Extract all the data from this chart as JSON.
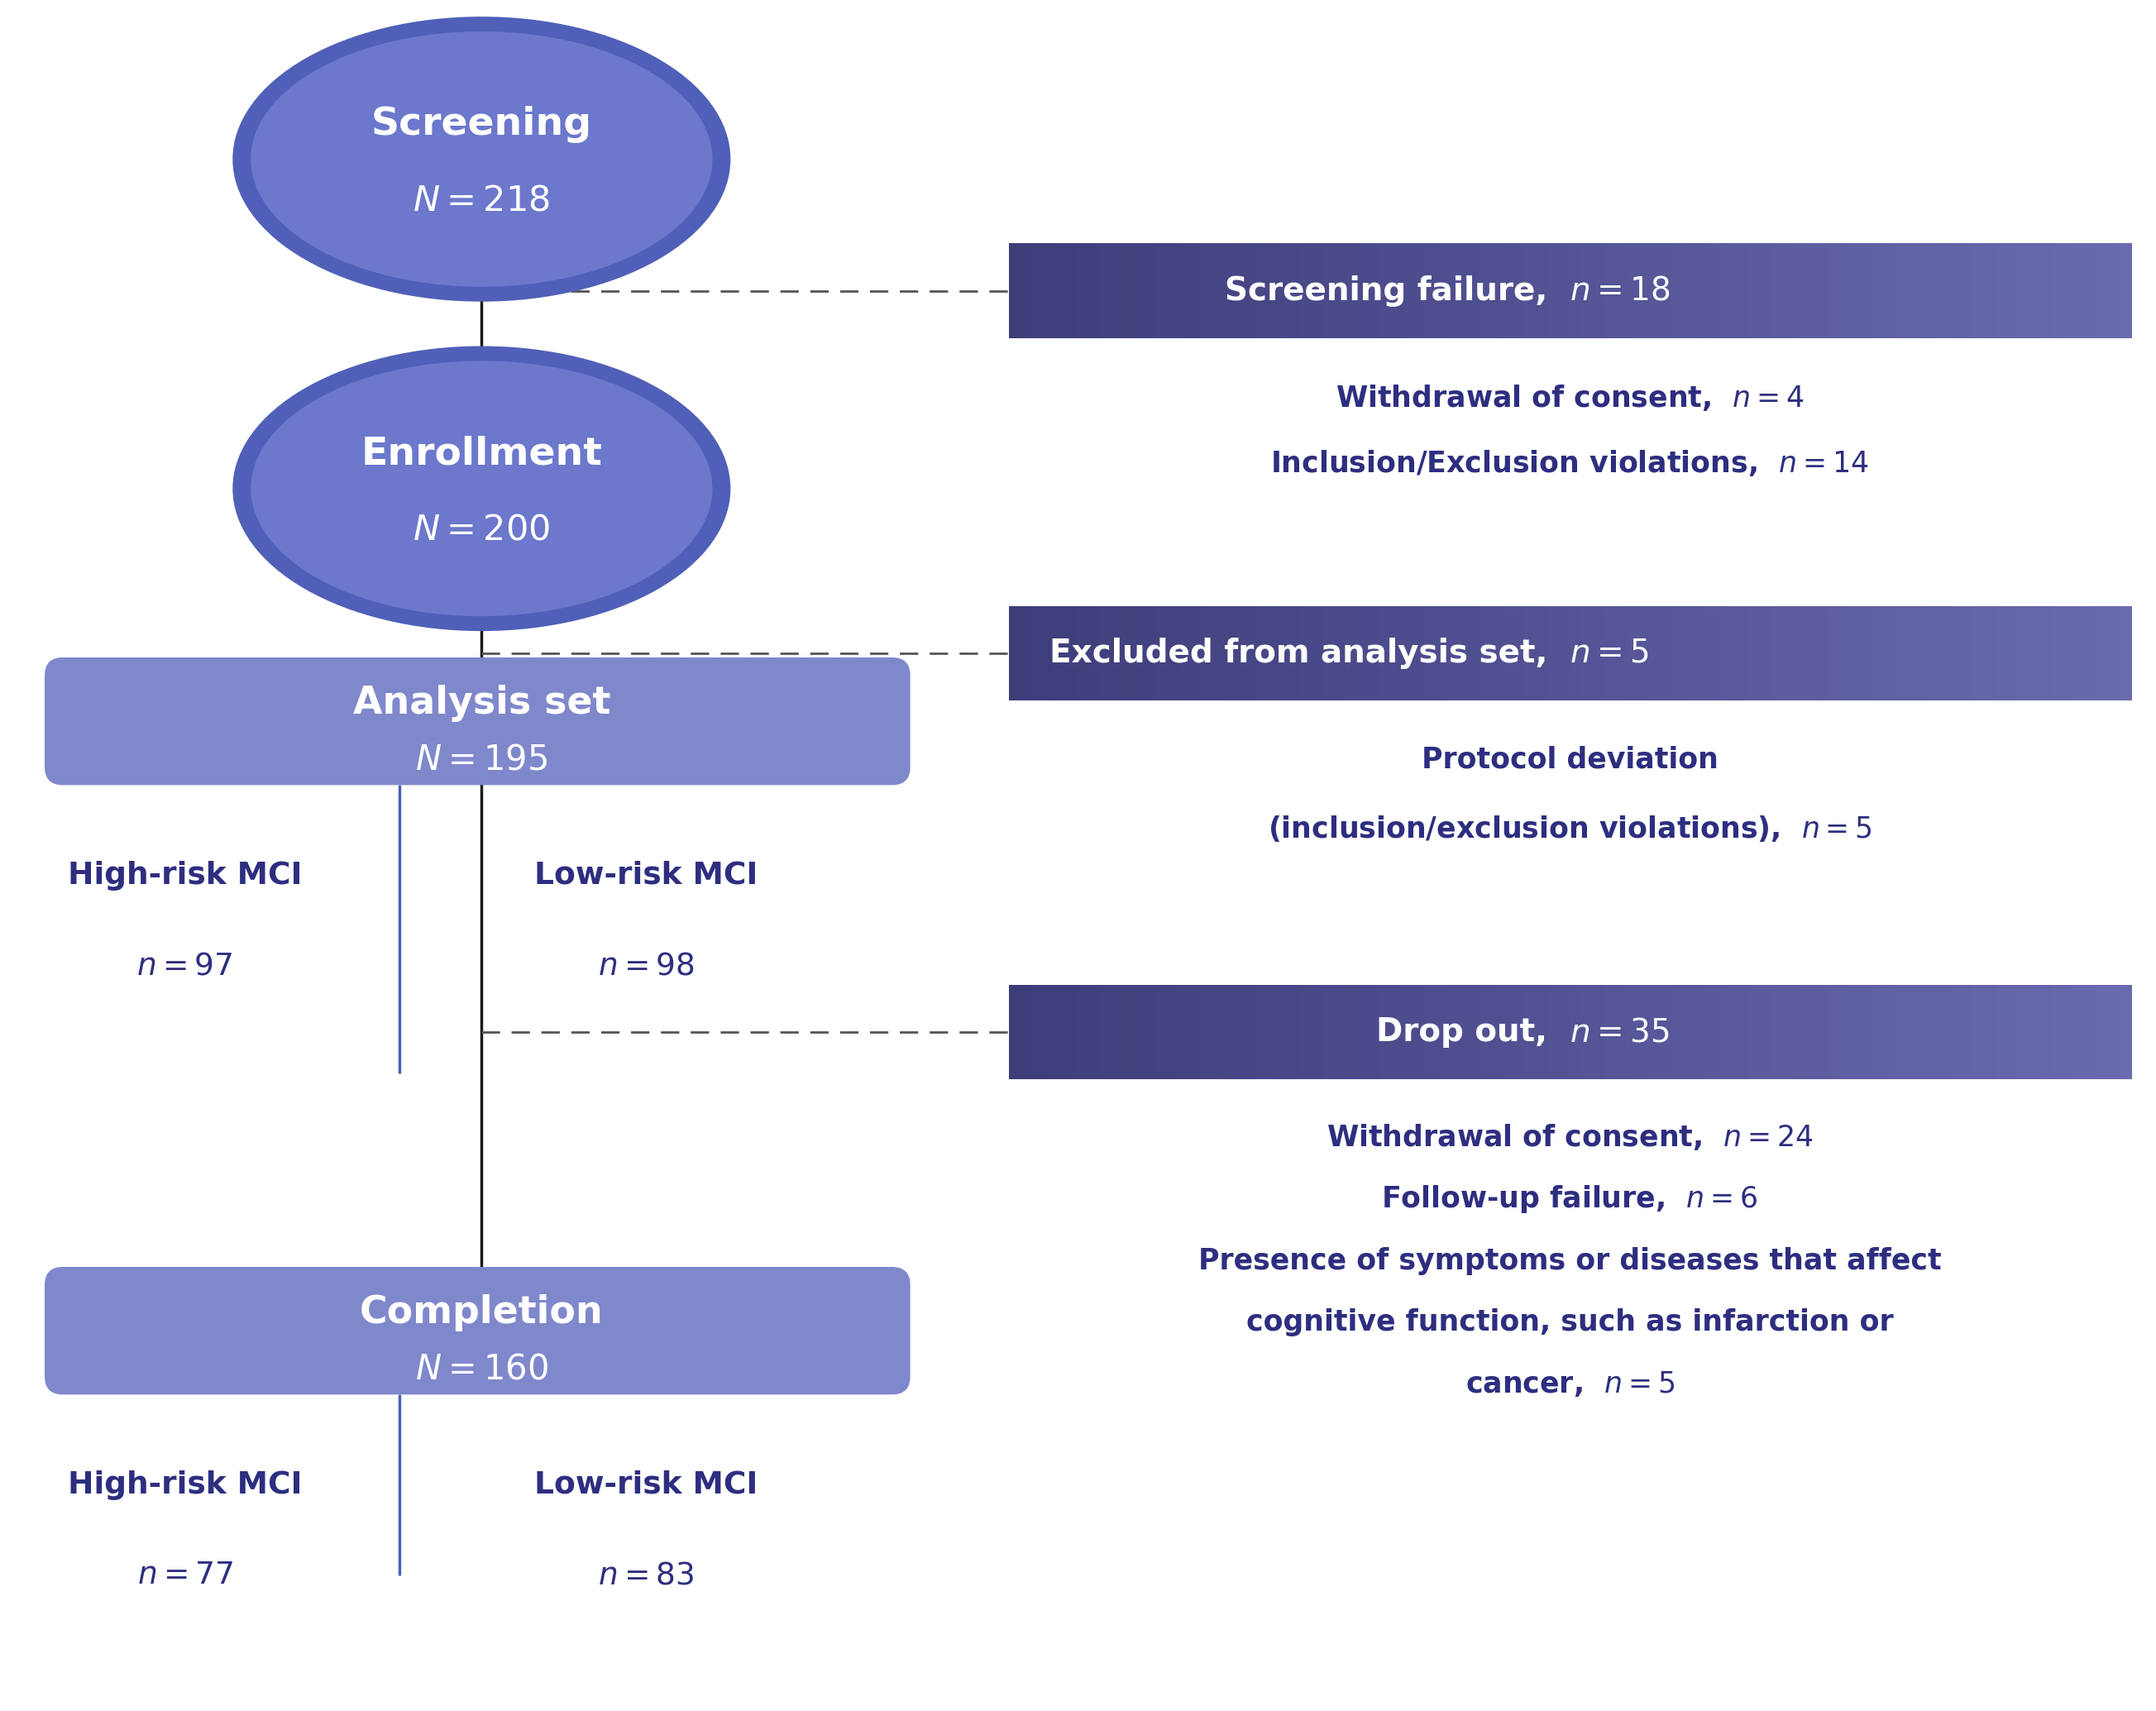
{
  "bg_color": "#ffffff",
  "circle_fill": "#6b78cc",
  "circle_shadow": "#5060b8",
  "rect_fill": "#8088cc",
  "side_box_left": "#3d3d7a",
  "side_box_right": "#6a6ab0",
  "text_white": "#ffffff",
  "text_blue_dark": "#2e2e80",
  "text_blue_mid": "#4040a0",
  "line_solid": "#1a1a1a",
  "line_dash": "#555555",
  "divider_line": "#5060b8",
  "screening_label": "Screening",
  "screening_n": "N = 218",
  "enrollment_label": "Enrollment",
  "enrollment_n": "N = 200",
  "analysis_label": "Analysis set",
  "analysis_n": "N = 195",
  "completion_label": "Completion",
  "completion_n": "N = 160",
  "high_risk": "High-risk MCI",
  "low_risk": "Low-risk MCI",
  "an_high_n": "n = 97",
  "an_low_n": "n = 98",
  "co_high_n": "n = 77",
  "co_low_n": "n = 83",
  "sf_title_bold": "Screening failure, ",
  "sf_title_italic": "n = 18",
  "sf_d1_bold": "Withdrawal of consent, ",
  "sf_d1_italic": "n = 4",
  "sf_d2_bold": "Inclusion/Exclusion violations, ",
  "sf_d2_italic": "n = 14",
  "ex_title_bold": "Excluded from analysis set, ",
  "ex_title_italic": "n = 5",
  "ex_d1": "Protocol deviation",
  "ex_d2_bold": "(inclusion/exclusion violations), ",
  "ex_d2_italic": "n = 5",
  "do_title_bold": "Drop out, ",
  "do_title_italic": "n = 35",
  "do_d1_bold": "Withdrawal of consent, ",
  "do_d1_italic": "n = 24",
  "do_d2_bold": "Follow-up failure, ",
  "do_d2_italic": "n = 6",
  "do_d3": "Presence of symptoms or diseases that affect",
  "do_d4": "cognitive function, such as infarction or",
  "do_d5_bold": "cancer, ",
  "do_d5_italic": "n = 5"
}
